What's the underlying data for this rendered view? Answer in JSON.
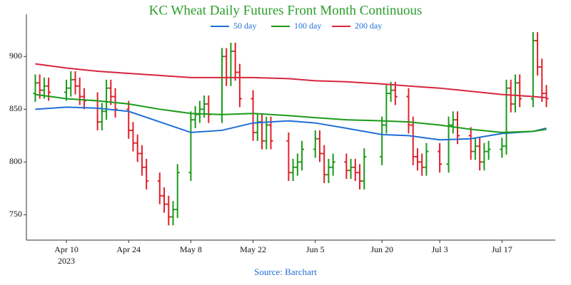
{
  "chart_data": {
    "type": "ohlc",
    "title": "KC Wheat Daily Futures Front Month Continuous",
    "source": "Source: Barchart",
    "x": [
      "2023-04-03",
      "2023-04-04",
      "2023-04-05",
      "2023-04-06",
      "2023-04-10",
      "2023-04-11",
      "2023-04-12",
      "2023-04-13",
      "2023-04-14",
      "2023-04-17",
      "2023-04-18",
      "2023-04-19",
      "2023-04-20",
      "2023-04-21",
      "2023-04-24",
      "2023-04-25",
      "2023-04-26",
      "2023-04-27",
      "2023-04-28",
      "2023-05-01",
      "2023-05-02",
      "2023-05-03",
      "2023-05-04",
      "2023-05-05",
      "2023-05-08",
      "2023-05-09",
      "2023-05-10",
      "2023-05-11",
      "2023-05-12",
      "2023-05-15",
      "2023-05-16",
      "2023-05-17",
      "2023-05-18",
      "2023-05-19",
      "2023-05-22",
      "2023-05-23",
      "2023-05-24",
      "2023-05-25",
      "2023-05-26",
      "2023-05-30",
      "2023-05-31",
      "2023-06-01",
      "2023-06-02",
      "2023-06-05",
      "2023-06-06",
      "2023-06-07",
      "2023-06-08",
      "2023-06-09",
      "2023-06-12",
      "2023-06-13",
      "2023-06-14",
      "2023-06-15",
      "2023-06-16",
      "2023-06-20",
      "2023-06-21",
      "2023-06-22",
      "2023-06-23",
      "2023-06-26",
      "2023-06-27",
      "2023-06-28",
      "2023-06-29",
      "2023-06-30",
      "2023-07-03",
      "2023-07-05",
      "2023-07-06",
      "2023-07-07",
      "2023-07-10",
      "2023-07-11",
      "2023-07-12",
      "2023-07-13",
      "2023-07-14",
      "2023-07-17",
      "2023-07-18",
      "2023-07-19",
      "2023-07-20",
      "2023-07-21",
      "2023-07-24",
      "2023-07-25",
      "2023-07-26",
      "2023-07-27"
    ],
    "open": [
      865,
      875,
      868,
      872,
      866,
      870,
      878,
      872,
      862,
      858,
      838,
      848,
      870,
      862,
      850,
      830,
      818,
      808,
      795,
      782,
      768,
      760,
      748,
      755,
      790,
      840,
      845,
      850,
      855,
      845,
      900,
      880,
      905,
      885,
      860,
      828,
      838,
      820,
      835,
      820,
      790,
      795,
      800,
      812,
      822,
      808,
      788,
      795,
      800,
      792,
      795,
      790,
      782,
      805,
      835,
      865,
      868,
      862,
      835,
      805,
      800,
      795,
      810,
      798,
      835,
      840,
      825,
      810,
      815,
      800,
      810,
      812,
      815,
      870,
      855,
      875,
      860,
      915,
      890,
      865
    ],
    "high": [
      883,
      883,
      880,
      880,
      878,
      886,
      886,
      880,
      870,
      866,
      856,
      878,
      878,
      870,
      858,
      838,
      826,
      816,
      803,
      790,
      776,
      768,
      763,
      798,
      848,
      853,
      858,
      863,
      863,
      908,
      908,
      913,
      913,
      893,
      868,
      846,
      846,
      843,
      843,
      828,
      803,
      808,
      820,
      830,
      830,
      816,
      803,
      808,
      808,
      803,
      803,
      798,
      813,
      843,
      873,
      876,
      876,
      870,
      843,
      813,
      808,
      818,
      818,
      843,
      848,
      848,
      833,
      823,
      823,
      818,
      820,
      823,
      878,
      878,
      883,
      883,
      923,
      923,
      898,
      873
    ],
    "low": [
      857,
      860,
      860,
      858,
      858,
      862,
      864,
      854,
      850,
      830,
      830,
      840,
      854,
      842,
      822,
      810,
      800,
      787,
      774,
      760,
      752,
      740,
      740,
      747,
      782,
      832,
      837,
      842,
      837,
      837,
      872,
      872,
      877,
      852,
      820,
      820,
      812,
      812,
      812,
      782,
      782,
      787,
      792,
      804,
      800,
      780,
      780,
      787,
      784,
      784,
      782,
      774,
      774,
      797,
      827,
      857,
      854,
      827,
      797,
      792,
      787,
      787,
      790,
      790,
      827,
      817,
      802,
      802,
      792,
      792,
      802,
      804,
      807,
      847,
      847,
      852,
      852,
      882,
      857,
      852
    ],
    "close": [
      875,
      868,
      872,
      866,
      870,
      878,
      872,
      862,
      858,
      838,
      848,
      870,
      862,
      850,
      830,
      818,
      808,
      795,
      782,
      768,
      760,
      748,
      755,
      790,
      840,
      845,
      850,
      855,
      845,
      900,
      880,
      905,
      885,
      860,
      828,
      838,
      820,
      835,
      820,
      790,
      795,
      800,
      812,
      822,
      808,
      788,
      795,
      800,
      792,
      795,
      790,
      782,
      805,
      835,
      865,
      868,
      862,
      835,
      805,
      800,
      795,
      810,
      798,
      835,
      840,
      825,
      810,
      815,
      800,
      810,
      812,
      815,
      870,
      855,
      875,
      860,
      915,
      890,
      865,
      860
    ],
    "up_color": "#1a9a1a",
    "down_color": "#e0202a",
    "series": [
      {
        "name": "50 day",
        "color": "#1f6fd8",
        "x": [
          "2023-04-03",
          "2023-04-10",
          "2023-04-17",
          "2023-04-24",
          "2023-05-01",
          "2023-05-08",
          "2023-05-15",
          "2023-05-22",
          "2023-05-30",
          "2023-06-05",
          "2023-06-12",
          "2023-06-20",
          "2023-06-26",
          "2023-07-03",
          "2023-07-10",
          "2023-07-17",
          "2023-07-24",
          "2023-07-27"
        ],
        "values": [
          850,
          852,
          851,
          848,
          838,
          828,
          830,
          837,
          839,
          837,
          832,
          826,
          825,
          821,
          822,
          827,
          829,
          832
        ]
      },
      {
        "name": "100 day",
        "color": "#1a9a1a",
        "x": [
          "2023-04-03",
          "2023-04-10",
          "2023-04-17",
          "2023-04-24",
          "2023-05-01",
          "2023-05-08",
          "2023-05-15",
          "2023-05-22",
          "2023-05-30",
          "2023-06-05",
          "2023-06-12",
          "2023-06-20",
          "2023-06-26",
          "2023-07-03",
          "2023-07-10",
          "2023-07-17",
          "2023-07-24",
          "2023-07-27"
        ],
        "values": [
          864,
          860,
          858,
          855,
          850,
          846,
          845,
          846,
          844,
          842,
          840,
          839,
          838,
          835,
          831,
          828,
          829,
          831
        ]
      },
      {
        "name": "200 day",
        "color": "#d6263c",
        "x": [
          "2023-04-03",
          "2023-04-10",
          "2023-04-17",
          "2023-04-24",
          "2023-05-01",
          "2023-05-08",
          "2023-05-15",
          "2023-05-22",
          "2023-05-30",
          "2023-06-05",
          "2023-06-12",
          "2023-06-20",
          "2023-06-26",
          "2023-07-03",
          "2023-07-10",
          "2023-07-17",
          "2023-07-24",
          "2023-07-27"
        ],
        "values": [
          893,
          889,
          886,
          884,
          882,
          880,
          880,
          880,
          879,
          877,
          876,
          874,
          872,
          870,
          867,
          864,
          862,
          861
        ]
      }
    ],
    "xlim": [
      "2023-04-01",
      "2023-07-29"
    ],
    "xticks": [
      {
        "value": "2023-04-10",
        "label": "Apr 10"
      },
      {
        "value": "2023-04-24",
        "label": "Apr 24"
      },
      {
        "value": "2023-05-08",
        "label": "May 8"
      },
      {
        "value": "2023-05-22",
        "label": "May 22"
      },
      {
        "value": "2023-06-05",
        "label": "Jun 5"
      },
      {
        "value": "2023-06-20",
        "label": "Jun 20"
      },
      {
        "value": "2023-07-03",
        "label": "Jul 3"
      },
      {
        "value": "2023-07-17",
        "label": "Jul 17"
      }
    ],
    "x_year": "2023",
    "ylim": [
      726,
      940
    ],
    "yticks": [
      750,
      800,
      850,
      900
    ],
    "grid": false,
    "legend": "top"
  }
}
